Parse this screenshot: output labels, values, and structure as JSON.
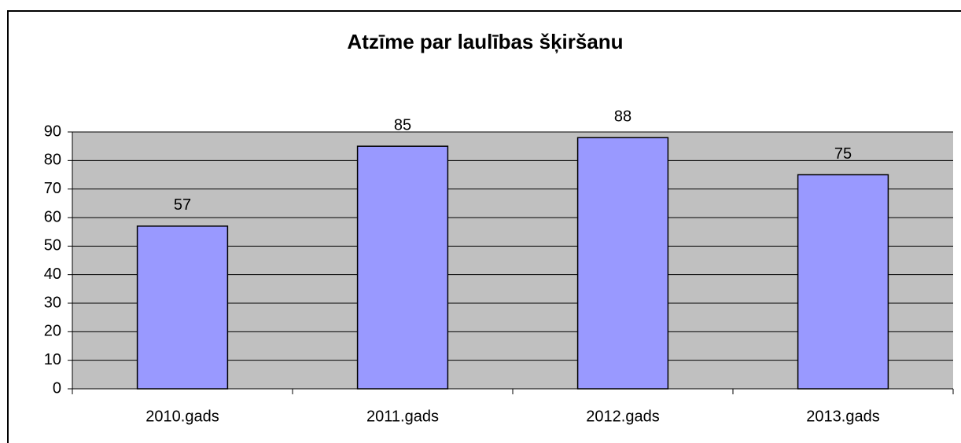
{
  "chart_data": {
    "type": "bar",
    "title": "Atzīme par laulības šķiršanu",
    "categories": [
      "2010.gads",
      "2011.gads",
      "2012.gads",
      "2013.gads"
    ],
    "values": [
      57,
      85,
      88,
      75
    ],
    "color": "#9999ff",
    "ylim": [
      0,
      90
    ],
    "yticks": [
      0,
      10,
      20,
      30,
      40,
      50,
      60,
      70,
      80,
      90
    ],
    "grid": true
  }
}
